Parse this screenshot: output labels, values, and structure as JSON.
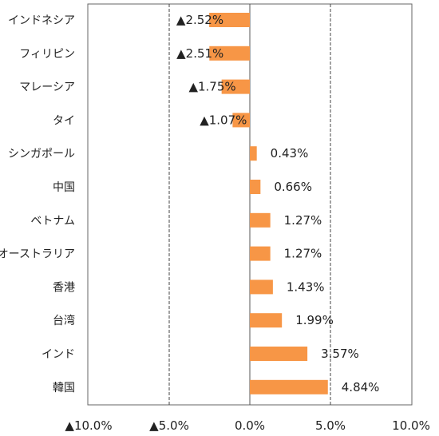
{
  "chart_data": {
    "type": "bar",
    "orientation": "horizontal",
    "title": "",
    "xlabel": "",
    "ylabel": "",
    "categories": [
      "インドネシア",
      "フィリピン",
      "マレーシア",
      "タイ",
      "シンガポール",
      "中国",
      "ベトナム",
      "オーストラリア",
      "香港",
      "台湾",
      "インド",
      "韓国"
    ],
    "values": [
      -2.52,
      -2.51,
      -1.75,
      -1.07,
      0.43,
      0.66,
      1.27,
      1.27,
      1.43,
      1.99,
      3.57,
      4.84
    ],
    "value_labels": [
      "▲2.52%",
      "▲2.51%",
      "▲1.75%",
      "▲1.07%",
      "0.43%",
      "0.66%",
      "1.27%",
      "1.27%",
      "1.43%",
      "1.99%",
      "3.57%",
      "4.84%"
    ],
    "xlim": [
      -10,
      10
    ],
    "xticks": [
      -10,
      -5,
      0,
      5,
      10
    ],
    "xtick_labels": [
      "▲10.0%",
      "▲5.0%",
      "0.0%",
      "5.0%",
      "10.0%"
    ],
    "gridlines": "vertical, dashed at ±5%",
    "bar_color": "#F79646",
    "legend": "none"
  }
}
